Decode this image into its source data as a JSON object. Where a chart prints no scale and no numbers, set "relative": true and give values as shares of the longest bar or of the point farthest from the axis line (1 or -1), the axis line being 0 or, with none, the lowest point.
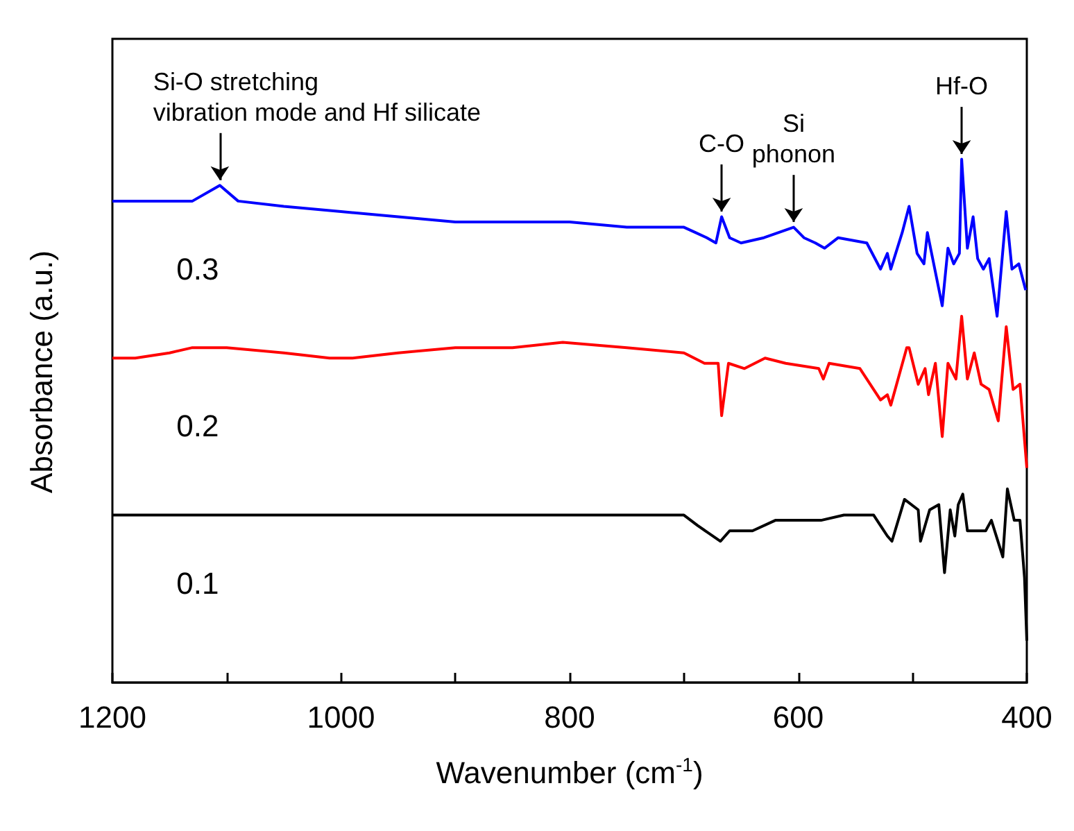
{
  "chart_data": {
    "type": "line",
    "relative": true,
    "xlabel": "Wavenumber (cm$^{-1}$)",
    "ylabel": "Absorbance (a.u.)",
    "xlim": [
      1200,
      400
    ],
    "xticks": [
      1200,
      {
        "value": 1100,
        "label": null
      },
      1000,
      {
        "value": 900,
        "label": null
      },
      800,
      {
        "value": 700,
        "label": null
      },
      600,
      {
        "value": 500,
        "label": null
      },
      400
    ],
    "grid": false,
    "legend": false,
    "marker": "none",
    "series": [
      {
        "name": "0.3",
        "color": "#0000ff",
        "x": [
          1200,
          1150,
          1130,
          1106,
          1090,
          1050,
          1000,
          950,
          900,
          850,
          800,
          750,
          700,
          690,
          680,
          672,
          667,
          660,
          650,
          630,
          604,
          595,
          585,
          577,
          565,
          540,
          528,
          522,
          519,
          509,
          503,
          496,
          490,
          487,
          474,
          469,
          464,
          459,
          457,
          452,
          447,
          443,
          438,
          433,
          426,
          418,
          413,
          407,
          401
        ],
        "values": [
          0.92,
          0.92,
          0.92,
          0.95,
          0.92,
          0.91,
          0.9,
          0.89,
          0.88,
          0.88,
          0.88,
          0.87,
          0.87,
          0.86,
          0.85,
          0.84,
          0.89,
          0.85,
          0.84,
          0.85,
          0.87,
          0.85,
          0.84,
          0.83,
          0.85,
          0.84,
          0.79,
          0.82,
          0.79,
          0.86,
          0.91,
          0.82,
          0.8,
          0.86,
          0.72,
          0.83,
          0.8,
          0.82,
          1,
          0.83,
          0.89,
          0.81,
          0.79,
          0.81,
          0.7,
          0.9,
          0.79,
          0.8,
          0.75
        ]
      },
      {
        "name": "0.2",
        "color": "#ff0000",
        "x": [
          1200,
          1180,
          1150,
          1130,
          1100,
          1050,
          1010,
          990,
          950,
          900,
          850,
          806,
          750,
          700,
          682,
          670,
          667,
          661,
          647,
          629,
          611,
          582,
          578,
          573,
          546,
          528,
          522,
          519,
          505,
          503,
          495,
          489,
          486,
          480,
          474,
          469,
          462,
          457,
          452,
          446,
          440,
          433,
          425,
          418,
          412,
          406,
          400
        ],
        "values": [
          0.62,
          0.62,
          0.63,
          0.64,
          0.64,
          0.63,
          0.62,
          0.62,
          0.63,
          0.64,
          0.64,
          0.65,
          0.64,
          0.63,
          0.61,
          0.61,
          0.51,
          0.61,
          0.6,
          0.62,
          0.61,
          0.6,
          0.58,
          0.61,
          0.6,
          0.54,
          0.55,
          0.53,
          0.64,
          0.64,
          0.57,
          0.6,
          0.55,
          0.61,
          0.47,
          0.61,
          0.58,
          0.7,
          0.58,
          0.63,
          0.57,
          0.56,
          0.5,
          0.68,
          0.56,
          0.57,
          0.41
        ]
      },
      {
        "name": "0.1",
        "color": "#000000",
        "x": [
          1200,
          1100,
          1000,
          900,
          800,
          700,
          688,
          668,
          660,
          640,
          620,
          596,
          580,
          560,
          534,
          522,
          518,
          507,
          495,
          493,
          485,
          477,
          472,
          467,
          463,
          460,
          456,
          452,
          443,
          436,
          431,
          421,
          417,
          411,
          406,
          402,
          400
        ],
        "values": [
          0.32,
          0.32,
          0.32,
          0.32,
          0.32,
          0.32,
          0.3,
          0.27,
          0.29,
          0.29,
          0.31,
          0.31,
          0.31,
          0.32,
          0.32,
          0.28,
          0.27,
          0.35,
          0.33,
          0.27,
          0.33,
          0.34,
          0.21,
          0.33,
          0.28,
          0.34,
          0.36,
          0.29,
          0.29,
          0.29,
          0.31,
          0.24,
          0.37,
          0.31,
          0.31,
          0.2,
          0.08
        ]
      }
    ],
    "annotations": [
      {
        "text": "Si-O stretching\nvibration mode and Hf silicate",
        "x": 1106,
        "y": 0.95
      },
      {
        "text": "C-O",
        "x": 667,
        "y": 0.89
      },
      {
        "text": "Si\nphonon",
        "x": 604,
        "y": 0.87
      },
      {
        "text": "Hf-O",
        "x": 457,
        "y": 1
      }
    ]
  }
}
